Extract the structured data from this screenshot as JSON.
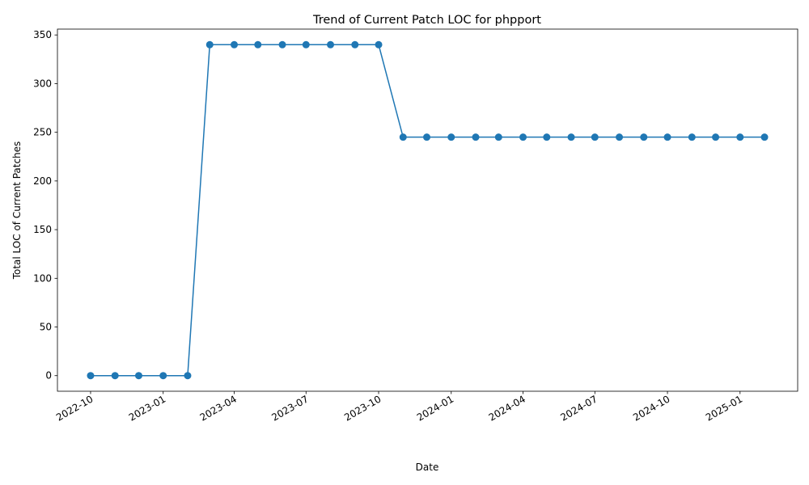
{
  "chart_data": {
    "type": "line",
    "title": "Trend of Current Patch LOC for phpport",
    "xlabel": "Date",
    "ylabel": "Total LOC of Current Patches",
    "x": [
      "2022-10-01",
      "2022-11-01",
      "2022-12-01",
      "2023-01-01",
      "2023-02-01",
      "2023-03-01",
      "2023-04-01",
      "2023-05-01",
      "2023-06-01",
      "2023-07-01",
      "2023-08-01",
      "2023-09-01",
      "2023-10-01",
      "2023-11-01",
      "2023-12-01",
      "2024-01-01",
      "2024-02-01",
      "2024-03-01",
      "2024-04-01",
      "2024-05-01",
      "2024-06-01",
      "2024-07-01",
      "2024-08-01",
      "2024-09-01",
      "2024-10-01",
      "2024-11-01",
      "2024-12-01",
      "2025-01-01",
      "2025-02-01"
    ],
    "series": [
      {
        "values": [
          0,
          0,
          0,
          0,
          0,
          340,
          340,
          340,
          340,
          340,
          340,
          340,
          340,
          245,
          245,
          245,
          245,
          245,
          245,
          245,
          245,
          245,
          245,
          245,
          245,
          245,
          245,
          245,
          245
        ],
        "color": "#1f77b4"
      }
    ],
    "xlim": [
      "2022-08-20",
      "2025-03-15"
    ],
    "ylim": [
      -16,
      356
    ],
    "xticks": [
      "2022-10",
      "2023-01",
      "2023-04",
      "2023-07",
      "2023-10",
      "2024-01",
      "2024-04",
      "2024-07",
      "2024-10",
      "2025-01"
    ],
    "yticks": [
      0,
      50,
      100,
      150,
      200,
      250,
      300,
      350
    ],
    "grid": false,
    "marker": "circle"
  }
}
